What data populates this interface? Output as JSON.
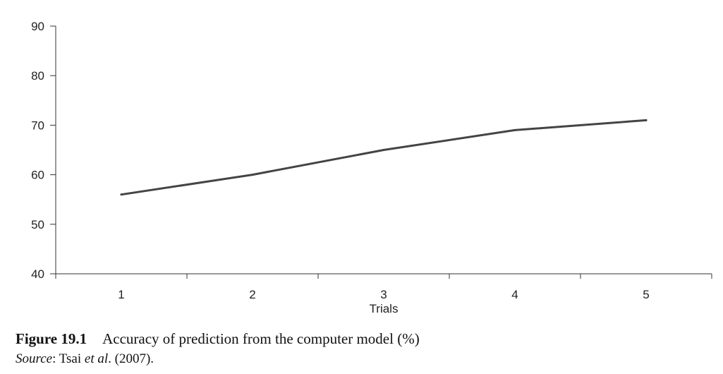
{
  "chart_data": {
    "type": "line",
    "categories": [
      "1",
      "2",
      "3",
      "4",
      "5"
    ],
    "x": [
      1,
      2,
      3,
      4,
      5
    ],
    "series": [
      {
        "values": [
          56,
          60,
          65,
          69,
          71
        ]
      }
    ],
    "xlabel": "Trials",
    "ylabel": "",
    "ylim": [
      40,
      90
    ],
    "yticks": [
      40,
      50,
      60,
      70,
      80,
      90
    ],
    "grid": false,
    "line_color": "#444444"
  },
  "caption": {
    "label": "Figure 19.1",
    "text": "Accuracy of prediction from the computer model (%)"
  },
  "source": {
    "label": "Source",
    "sep": ": Tsai ",
    "etal": "et al",
    "rest": ". (2007)."
  }
}
